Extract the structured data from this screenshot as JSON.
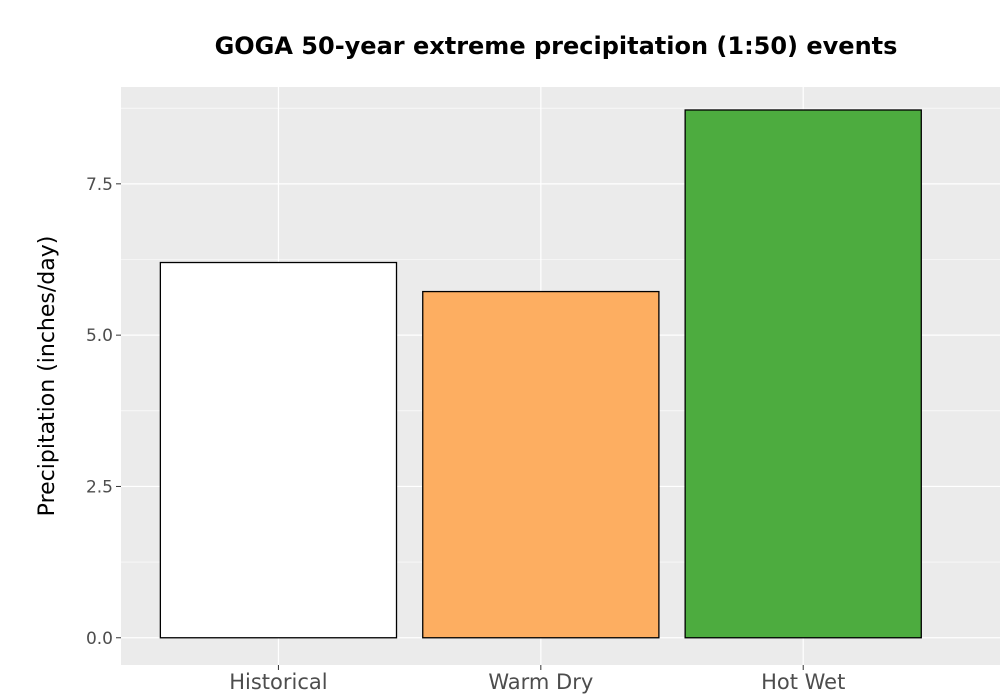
{
  "chart_data": {
    "type": "bar",
    "title": "GOGA 50-year extreme precipitation (1:50) events",
    "xlabel": "",
    "ylabel": "Precipitation (inches/day)",
    "categories": [
      "Historical",
      "Warm Dry",
      "Hot Wet"
    ],
    "values": [
      6.2,
      5.72,
      8.72
    ],
    "colors": [
      "#ffffff",
      "#fdae61",
      "#4dac3f"
    ],
    "ylim": [
      -0.45,
      9.1
    ],
    "yticks": [
      0,
      2.5,
      5,
      7.5
    ],
    "ytick_labels": [
      "0.0",
      "2.5",
      "5.0",
      "7.5"
    ],
    "grid": true,
    "panel_background": "#ebebeb"
  }
}
